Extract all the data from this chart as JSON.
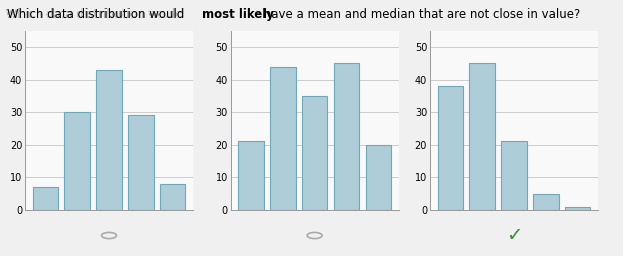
{
  "title": "Which data distribution would **most likely** have a mean and median that are not close in value?",
  "title_plain": "Which data distribution would most likely have a mean and median that are not close in value?",
  "title_bold_word": "most likely",
  "charts": [
    {
      "values": [
        7,
        30,
        43,
        29,
        8
      ],
      "correct": false
    },
    {
      "values": [
        21,
        44,
        35,
        45,
        20
      ],
      "correct": false
    },
    {
      "values": [
        38,
        45,
        21,
        5,
        1
      ],
      "correct": true
    }
  ],
  "bar_color": "#aecdd8",
  "bar_edge_color": "#6fa8b8",
  "bar_width": 0.8,
  "ylim": [
    0,
    55
  ],
  "yticks": [
    0,
    10,
    20,
    30,
    40,
    50
  ],
  "grid_color": "#cccccc",
  "bg_color": "#f9f9f9",
  "radio_color": "#aaaaaa",
  "check_color": "#3a8c3a",
  "fig_bg": "#f0f0f0"
}
